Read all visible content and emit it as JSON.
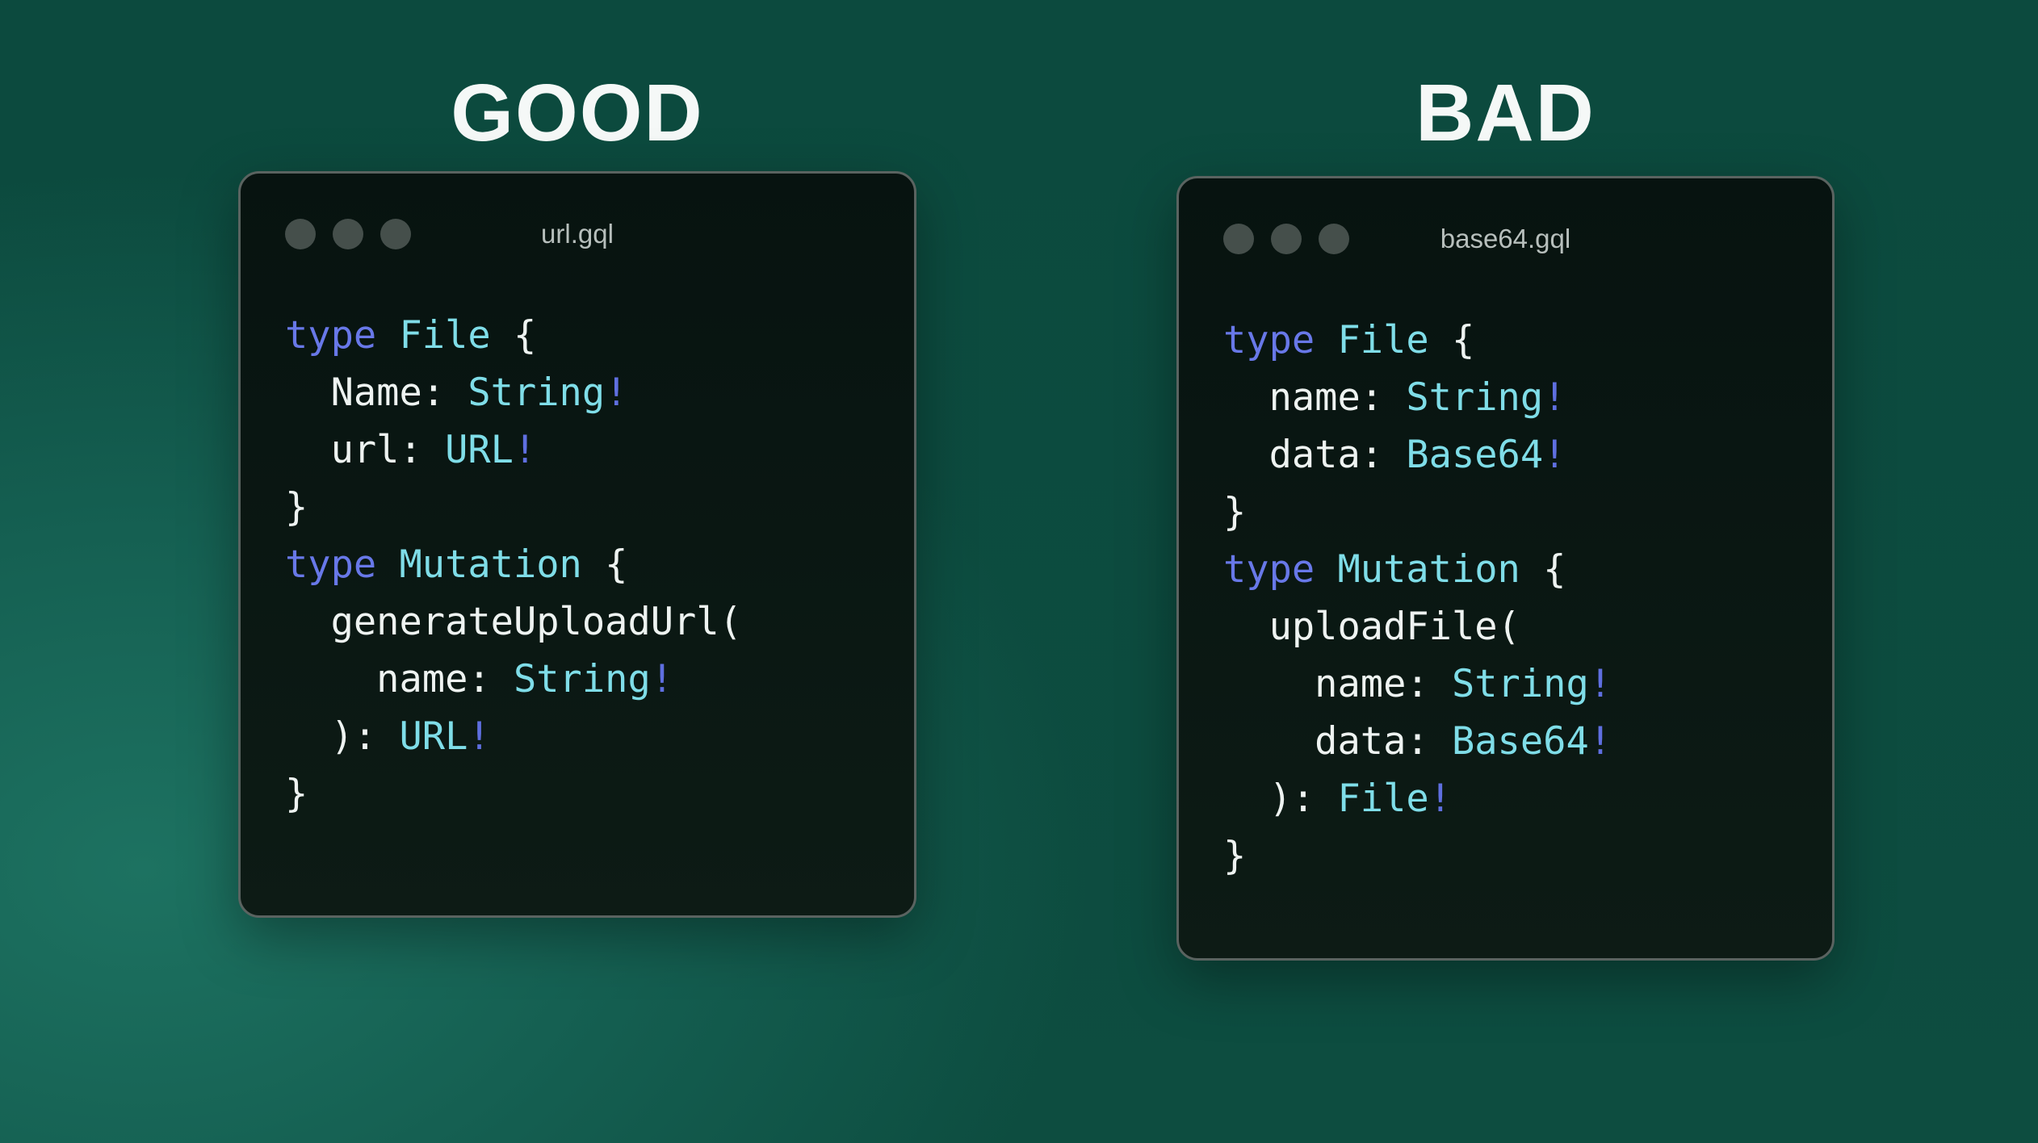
{
  "theme": {
    "bg-base": "#0c4a3e",
    "bg-glow": "#1d7261",
    "heading": "#f5f8f7",
    "window-bg-top": "#071310",
    "window-bg-bottom": "#0d1b15",
    "window-border": "#5a6360",
    "dot": "#454f4b",
    "filename": "#b7bfbc",
    "tok-kw": "#6878e8",
    "tok-ty": "#7fdde8",
    "tok-bang": "#5f6fe0",
    "tok-pl": "#eef3f1"
  },
  "icons": {
    "window_controls": "traffic-light-dots"
  },
  "panels": [
    {
      "id": "good",
      "heading": "GOOD",
      "filename": "url.gql",
      "code": [
        [
          [
            "kw",
            "type"
          ],
          [
            "pl",
            " "
          ],
          [
            "ty",
            "File"
          ],
          [
            "pl",
            " {"
          ]
        ],
        [
          [
            "pl",
            "  Name: "
          ],
          [
            "ty",
            "String"
          ],
          [
            "bang",
            "!"
          ]
        ],
        [
          [
            "pl",
            "  url: "
          ],
          [
            "ty",
            "URL"
          ],
          [
            "bang",
            "!"
          ]
        ],
        [
          [
            "pl",
            "}"
          ]
        ],
        [
          [
            "kw",
            "type"
          ],
          [
            "pl",
            " "
          ],
          [
            "ty",
            "Mutation"
          ],
          [
            "pl",
            " {"
          ]
        ],
        [
          [
            "pl",
            "  generateUploadUrl("
          ]
        ],
        [
          [
            "pl",
            "    name: "
          ],
          [
            "ty",
            "String"
          ],
          [
            "bang",
            "!"
          ]
        ],
        [
          [
            "pl",
            "  ): "
          ],
          [
            "ty",
            "URL"
          ],
          [
            "bang",
            "!"
          ]
        ],
        [
          [
            "pl",
            "}"
          ]
        ]
      ]
    },
    {
      "id": "bad",
      "heading": "BAD",
      "filename": "base64.gql",
      "code": [
        [
          [
            "kw",
            "type"
          ],
          [
            "pl",
            " "
          ],
          [
            "ty",
            "File"
          ],
          [
            "pl",
            " {"
          ]
        ],
        [
          [
            "pl",
            "  name: "
          ],
          [
            "ty",
            "String"
          ],
          [
            "bang",
            "!"
          ]
        ],
        [
          [
            "pl",
            "  data: "
          ],
          [
            "ty",
            "Base64"
          ],
          [
            "bang",
            "!"
          ]
        ],
        [
          [
            "pl",
            "}"
          ]
        ],
        [
          [
            "kw",
            "type"
          ],
          [
            "pl",
            " "
          ],
          [
            "ty",
            "Mutation"
          ],
          [
            "pl",
            " {"
          ]
        ],
        [
          [
            "pl",
            "  uploadFile("
          ]
        ],
        [
          [
            "pl",
            "    name: "
          ],
          [
            "ty",
            "String"
          ],
          [
            "bang",
            "!"
          ]
        ],
        [
          [
            "pl",
            "    data: "
          ],
          [
            "ty",
            "Base64"
          ],
          [
            "bang",
            "!"
          ]
        ],
        [
          [
            "pl",
            "  ): "
          ],
          [
            "ty",
            "File"
          ],
          [
            "bang",
            "!"
          ]
        ],
        [
          [
            "pl",
            "}"
          ]
        ]
      ]
    }
  ]
}
